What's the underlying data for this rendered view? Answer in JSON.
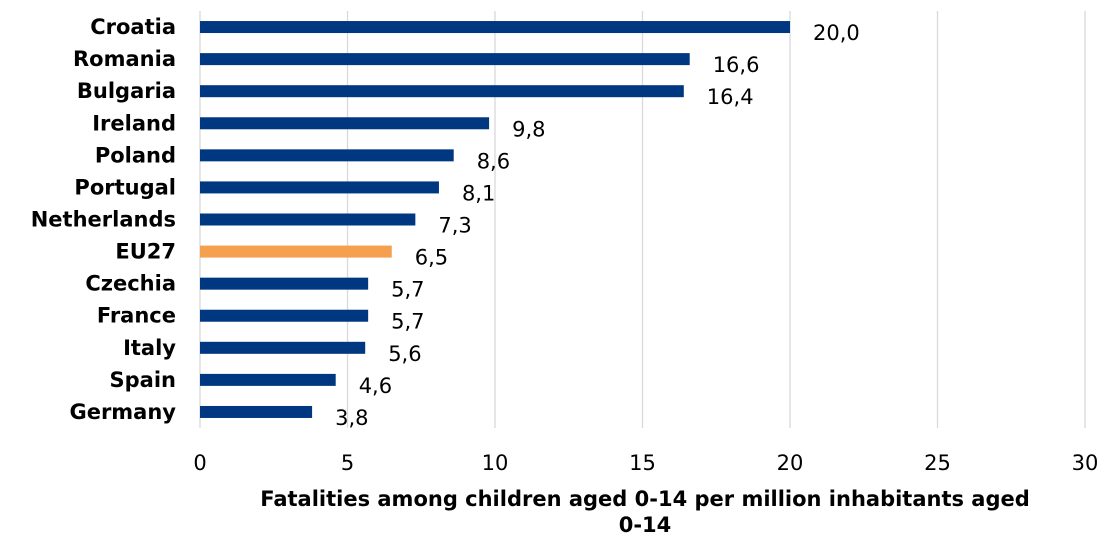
{
  "chart_data": {
    "type": "bar",
    "orientation": "horizontal",
    "categories": [
      "Croatia",
      "Romania",
      "Bulgaria",
      "Ireland",
      "Poland",
      "Portugal",
      "Netherlands",
      "EU27",
      "Czechia",
      "France",
      "Italy",
      "Spain",
      "Germany"
    ],
    "values": [
      20.0,
      16.6,
      16.4,
      9.8,
      8.6,
      8.1,
      7.3,
      6.5,
      5.7,
      5.7,
      5.6,
      4.6,
      3.8
    ],
    "value_labels": [
      "20,0",
      "16,6",
      "16,4",
      "9,8",
      "8,6",
      "8,1",
      "7,3",
      "6,5",
      "5,7",
      "5,7",
      "5,6",
      "4,6",
      "3,8"
    ],
    "highlight_category": "EU27",
    "colors": {
      "default": "#003781",
      "highlight": "#f4a04e"
    },
    "xlim": [
      0,
      30
    ],
    "xticks": [
      0,
      5,
      10,
      15,
      20,
      25,
      30
    ],
    "xtick_labels": [
      "0",
      "5",
      "10",
      "15",
      "20",
      "25",
      "30"
    ],
    "xlabel_lines": [
      "Fatalities among children aged 0-14 per million inhabitants aged",
      "0-14"
    ],
    "grid": "vertical",
    "legend": "none"
  }
}
